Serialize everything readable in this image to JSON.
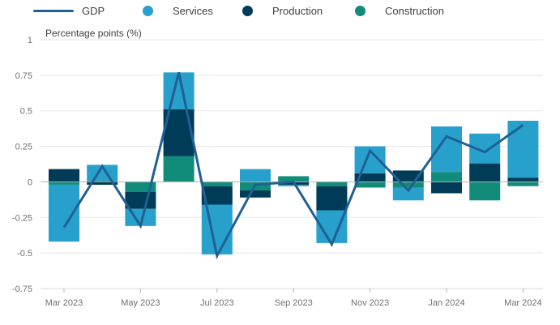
{
  "chart_data": {
    "type": "bar",
    "stacked": true,
    "y_axis_title": "Percentage points (%)",
    "ylim": [
      -0.75,
      1
    ],
    "yticks": [
      1,
      0.75,
      0.5,
      0.25,
      0,
      -0.25,
      -0.5,
      -0.75
    ],
    "categories": [
      "Mar 2023",
      "Apr 2023",
      "May 2023",
      "Jun 2023",
      "Jul 2023",
      "Aug 2023",
      "Sep 2023",
      "Oct 2023",
      "Nov 2023",
      "Dec 2023",
      "Jan 2024",
      "Feb 2024",
      "Mar 2024"
    ],
    "x_tick_labels": [
      "Mar 2023",
      "May 2023",
      "Jul 2023",
      "Sep 2023",
      "Nov 2023",
      "Jan 2024",
      "Mar 2024"
    ],
    "series": [
      {
        "name": "Services",
        "kind": "bar",
        "color": "#27a0cc",
        "values": [
          -0.4,
          0.11,
          -0.12,
          0.26,
          -0.35,
          0.09,
          -0.01,
          -0.23,
          0.19,
          -0.09,
          0.32,
          0.21,
          0.4
        ]
      },
      {
        "name": "Production",
        "kind": "bar",
        "color": "#003c57",
        "values": [
          0.09,
          -0.02,
          -0.12,
          0.33,
          -0.13,
          -0.05,
          -0.02,
          -0.17,
          0.06,
          0.08,
          -0.08,
          0.13,
          0.03
        ]
      },
      {
        "name": "Construction",
        "kind": "bar",
        "color": "#118c7b",
        "values": [
          -0.02,
          0.01,
          -0.07,
          0.18,
          -0.03,
          -0.06,
          0.04,
          -0.03,
          -0.04,
          -0.04,
          0.07,
          -0.13,
          -0.03
        ]
      },
      {
        "name": "GDP",
        "kind": "line",
        "color": "#206095",
        "values": [
          -0.32,
          0.11,
          -0.31,
          0.77,
          -0.52,
          -0.02,
          0.0,
          -0.44,
          0.22,
          -0.06,
          0.32,
          0.21,
          0.4
        ]
      }
    ],
    "legend": [
      "GDP",
      "Services",
      "Production",
      "Construction"
    ],
    "legend_position": "top",
    "grid": true,
    "colors": {
      "gridline": "#e5e5e5",
      "zero_line": "#b3b3b3",
      "axis_text": "#707071"
    }
  }
}
